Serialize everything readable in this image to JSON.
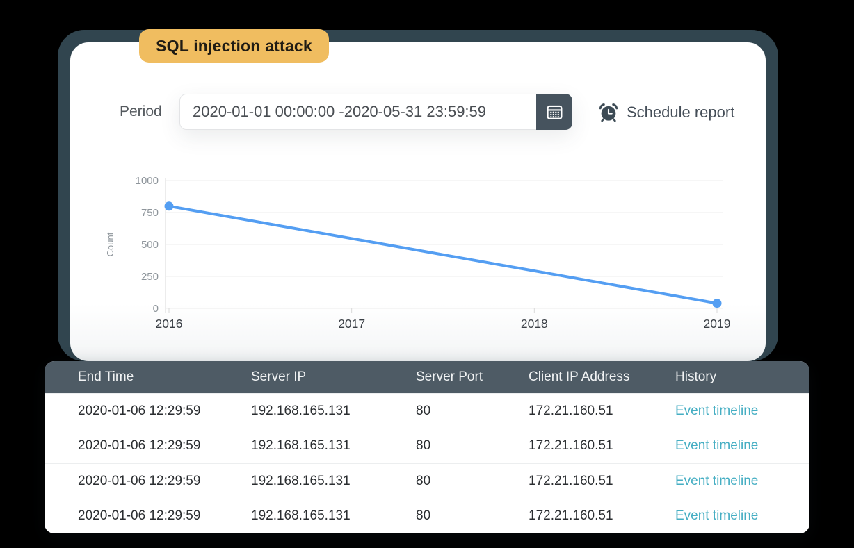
{
  "badge": {
    "label": "SQL injection attack"
  },
  "period": {
    "label": "Period",
    "value": "2020-01-01 00:00:00 -2020-05-31 23:59:59"
  },
  "schedule": {
    "label": "Schedule report"
  },
  "chart_data": {
    "type": "line",
    "title": "",
    "xlabel": "",
    "ylabel": "Count",
    "categories": [
      2016,
      2017,
      2018,
      2019
    ],
    "yticks": [
      0,
      250,
      500,
      750,
      1000
    ],
    "ylim": [
      0,
      1000
    ],
    "grid": "horizontal",
    "legend": "none",
    "series": [
      {
        "color": "#549ef2",
        "points": [
          {
            "x": 2016,
            "y": 800
          },
          {
            "x": 2019,
            "y": 40
          }
        ]
      }
    ]
  },
  "table": {
    "columns": [
      "End Time",
      "Server IP",
      "Server Port",
      "Client IP Address",
      "History"
    ],
    "rows": [
      {
        "end_time": "2020-01-06 12:29:59",
        "server_ip": "192.168.165.131",
        "server_port": "80",
        "client_ip": "172.21.160.51",
        "history": "Event timeline"
      },
      {
        "end_time": "2020-01-06 12:29:59",
        "server_ip": "192.168.165.131",
        "server_port": "80",
        "client_ip": "172.21.160.51",
        "history": "Event timeline"
      },
      {
        "end_time": "2020-01-06 12:29:59",
        "server_ip": "192.168.165.131",
        "server_port": "80",
        "client_ip": "172.21.160.51",
        "history": "Event timeline"
      },
      {
        "end_time": "2020-01-06 12:29:59",
        "server_ip": "192.168.165.131",
        "server_port": "80",
        "client_ip": "172.21.160.51",
        "history": "Event timeline"
      }
    ]
  },
  "colors": {
    "frame": "#31454f",
    "badge_bg": "#f0bd60",
    "line": "#549ef2",
    "table_header_bg": "#4e5b65",
    "link": "#45aec3",
    "calendar_button_bg": "#46535e"
  }
}
